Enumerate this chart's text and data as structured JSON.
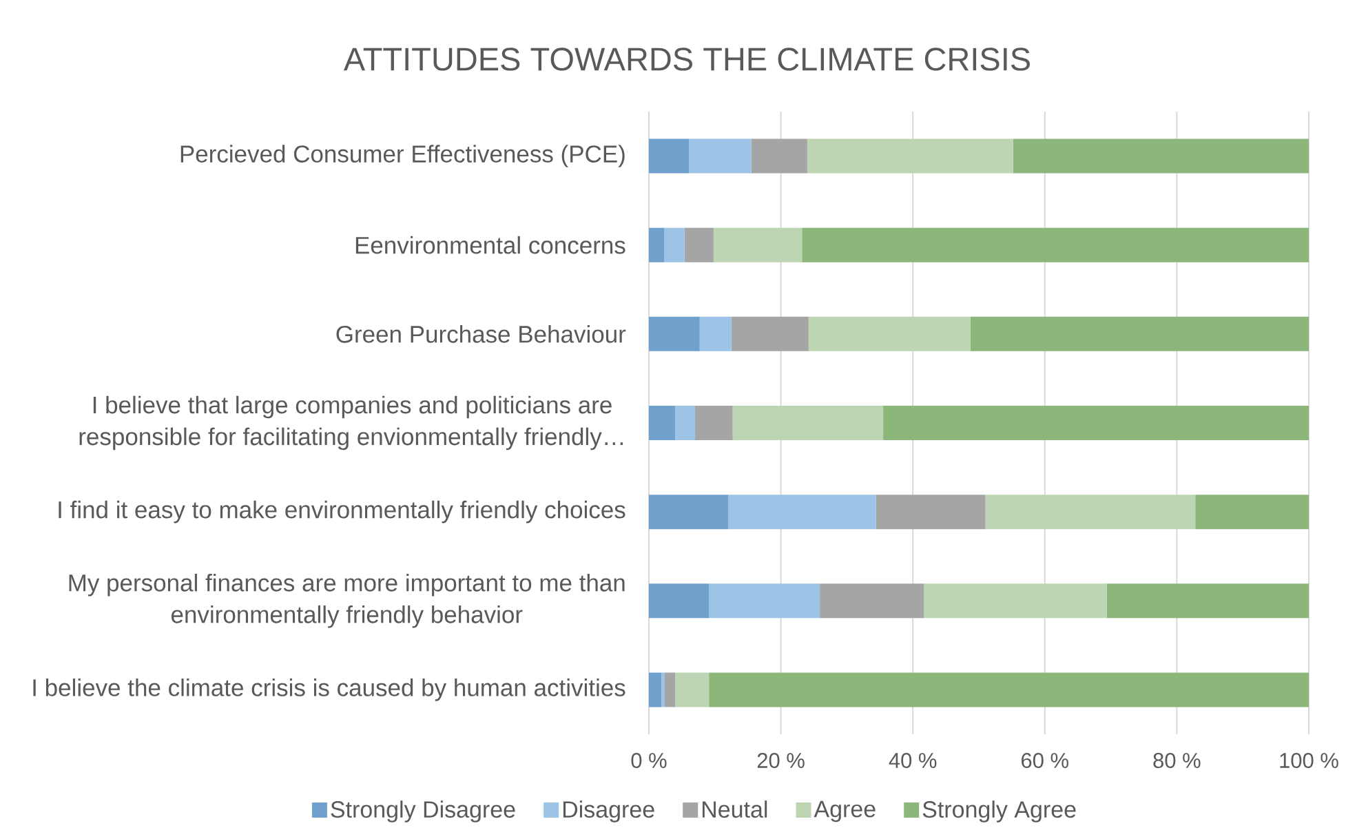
{
  "chart_data": {
    "type": "bar",
    "orientation": "horizontal",
    "stacked": true,
    "title": "ATTITUDES TOWARDS THE CLIMATE CRISIS",
    "categories": [
      "Percieved Consumer Effectiveness (PCE)",
      "Eenvironmental concerns",
      "Green Purchase Behaviour",
      "I believe that large companies and politicians are responsible for facilitating envionmentally friendly…",
      "I find it easy to make environmentally friendly choices",
      "My personal finances are more important to me than environmentally friendly behavior",
      "I believe the climate crisis is caused by human activities"
    ],
    "series": [
      {
        "name": "Strongly Disagree",
        "color": "#70a0cc",
        "values": [
          6.1,
          2.3,
          7.7,
          4.0,
          12.0,
          9.1,
          1.9
        ]
      },
      {
        "name": "Disagree",
        "color": "#9dc3e6",
        "values": [
          9.4,
          3.1,
          4.8,
          3.0,
          22.4,
          16.8,
          0.5
        ]
      },
      {
        "name": "Neutal",
        "color": "#a5a5a5",
        "values": [
          8.5,
          4.4,
          11.7,
          5.7,
          16.6,
          15.8,
          1.6
        ]
      },
      {
        "name": "Agree",
        "color": "#bdd5b2",
        "values": [
          31.2,
          13.4,
          24.5,
          22.8,
          31.8,
          27.7,
          5.1
        ]
      },
      {
        "name": "Strongly Agree",
        "color": "#8cb67a",
        "values": [
          44.8,
          76.8,
          51.3,
          64.5,
          17.2,
          30.6,
          90.9
        ]
      }
    ],
    "xlim": [
      0,
      100
    ],
    "xticks": [
      {
        "value": 0,
        "label": "0 %"
      },
      {
        "value": 20,
        "label": "20 %"
      },
      {
        "value": 40,
        "label": "40 %"
      },
      {
        "value": 60,
        "label": "60 %"
      },
      {
        "value": 80,
        "label": "80 %"
      },
      {
        "value": 100,
        "label": "100 %"
      }
    ],
    "grid": "x",
    "legend": "bottom"
  }
}
